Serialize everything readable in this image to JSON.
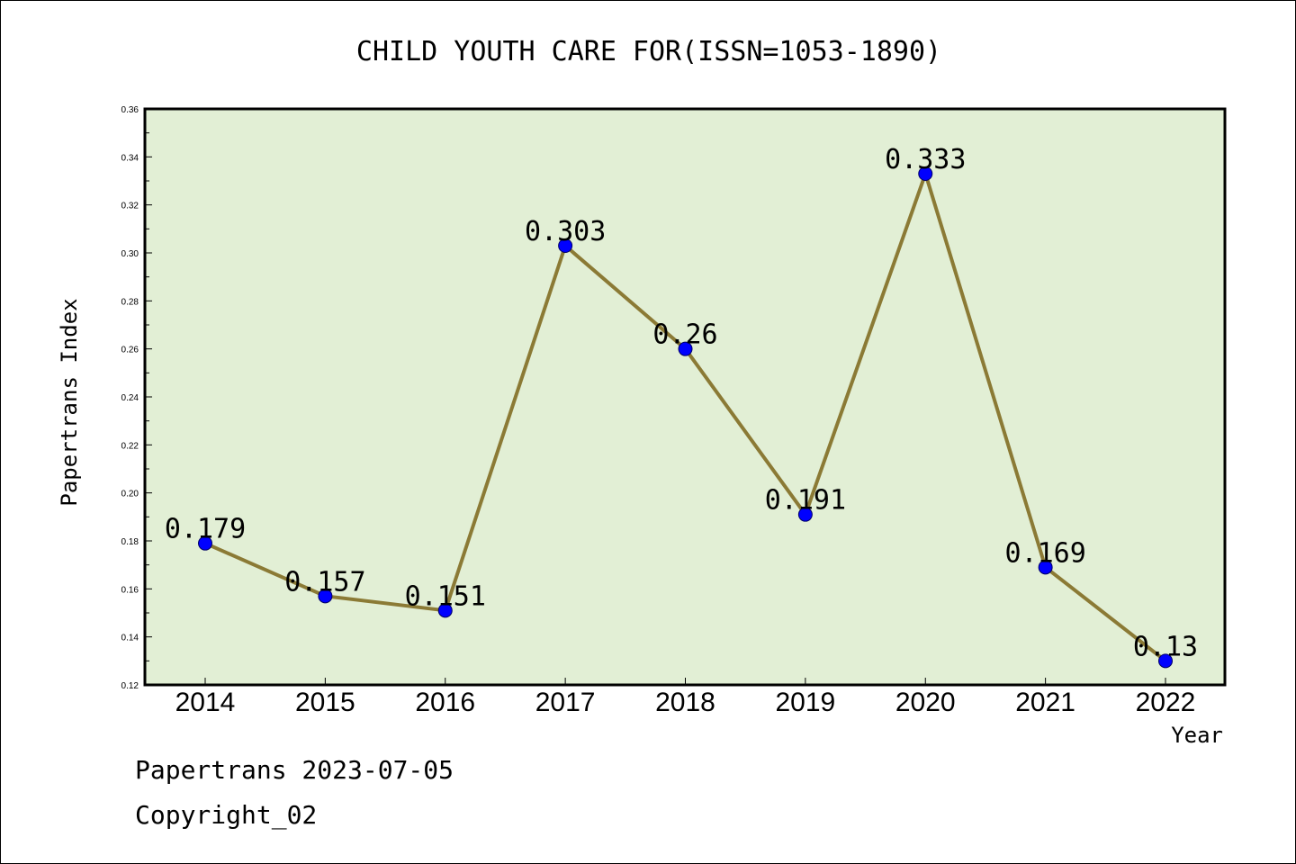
{
  "chart_data": {
    "type": "line",
    "title": "CHILD YOUTH CARE FOR(ISSN=1053-1890)",
    "xlabel": "Year",
    "ylabel": "Papertrans Index",
    "categories": [
      "2014",
      "2015",
      "2016",
      "2017",
      "2018",
      "2019",
      "2020",
      "2021",
      "2022"
    ],
    "values": [
      0.179,
      0.157,
      0.151,
      0.303,
      0.26,
      0.191,
      0.333,
      0.169,
      0.13
    ],
    "data_labels": [
      "0.179",
      "0.157",
      "0.151",
      "0.303",
      "0.26",
      "0.191",
      "0.333",
      "0.169",
      "0.13"
    ],
    "ylim": [
      0.12,
      0.36
    ],
    "yticks": [
      "0.12",
      "0.14",
      "0.16",
      "0.18",
      "0.20",
      "0.22",
      "0.24",
      "0.26",
      "0.28",
      "0.30",
      "0.32",
      "0.34",
      "0.36"
    ],
    "grid": false,
    "legend": "none",
    "colors": {
      "plot_background": "#e2efd5",
      "line": "#8b7a35",
      "marker": "#0000ff"
    }
  },
  "footer": {
    "line1": "Papertrans 2023-07-05",
    "line2": "Copyright_02"
  }
}
